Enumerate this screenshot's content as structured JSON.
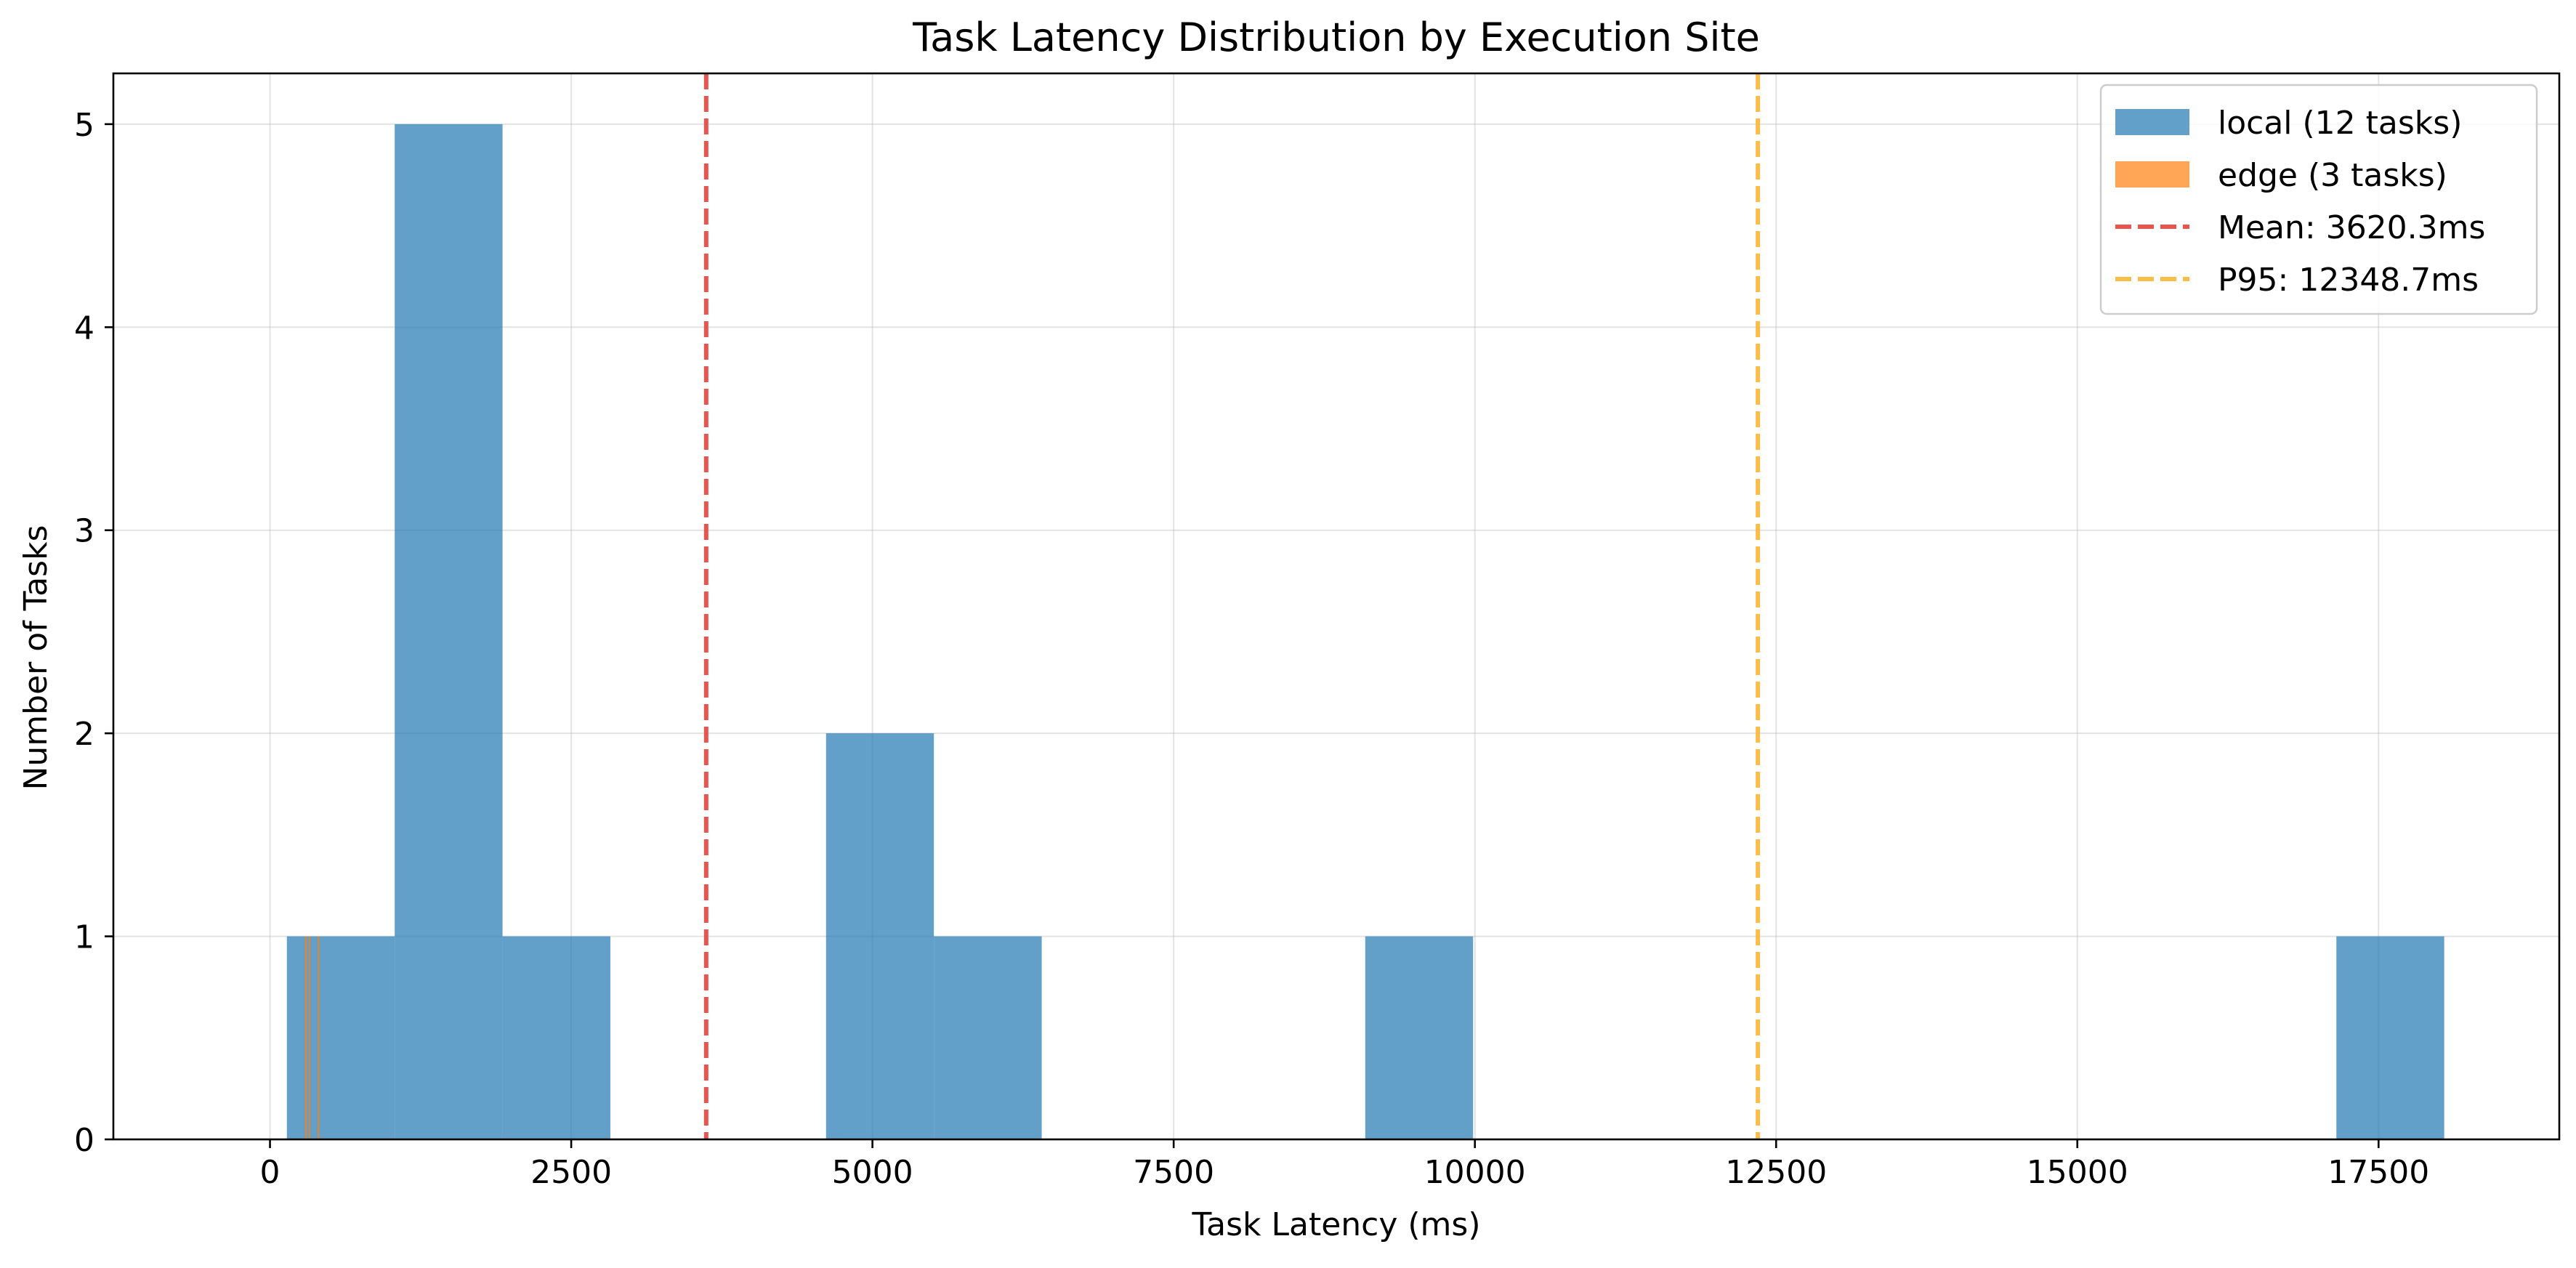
{
  "chart_data": {
    "type": "bar",
    "title": "Task Latency Distribution by Execution Site",
    "xlabel": "Task Latency (ms)",
    "ylabel": "Number of Tasks",
    "xlim": [
      -1300,
      19000
    ],
    "ylim": [
      0,
      5.25
    ],
    "xticks": [
      0,
      2500,
      5000,
      7500,
      10000,
      12500,
      15000,
      17500
    ],
    "xtick_labels": [
      "0",
      "2500",
      "5000",
      "7500",
      "10000",
      "12500",
      "15000",
      "17500"
    ],
    "yticks": [
      0,
      1,
      2,
      3,
      4,
      5
    ],
    "ytick_labels": [
      "0",
      "1",
      "2",
      "3",
      "4",
      "5"
    ],
    "grid": true,
    "legend_position": "top-right",
    "series": [
      {
        "name": "local (12 tasks)",
        "color": "#1f77b4",
        "bins": [
          {
            "x0": 140,
            "x1": 1035,
            "count": 1
          },
          {
            "x0": 1035,
            "x1": 1930,
            "count": 5
          },
          {
            "x0": 1930,
            "x1": 2825,
            "count": 1
          },
          {
            "x0": 4615,
            "x1": 5510,
            "count": 2
          },
          {
            "x0": 5510,
            "x1": 6405,
            "count": 1
          },
          {
            "x0": 9090,
            "x1": 9985,
            "count": 1
          },
          {
            "x0": 17150,
            "x1": 18045,
            "count": 1
          }
        ]
      },
      {
        "name": "edge (3 tasks)",
        "color": "#ff7f0e",
        "bins": [
          {
            "x0": 290,
            "x1": 305,
            "count": 1
          },
          {
            "x0": 320,
            "x1": 335,
            "count": 1
          },
          {
            "x0": 395,
            "x1": 410,
            "count": 1
          }
        ]
      }
    ],
    "reference_lines": [
      {
        "name": "Mean: 3620.3ms",
        "x": 3620.3,
        "color": "#e8413c"
      },
      {
        "name": "P95: 12348.7ms",
        "x": 12348.7,
        "color": "#fbb534"
      }
    ]
  }
}
